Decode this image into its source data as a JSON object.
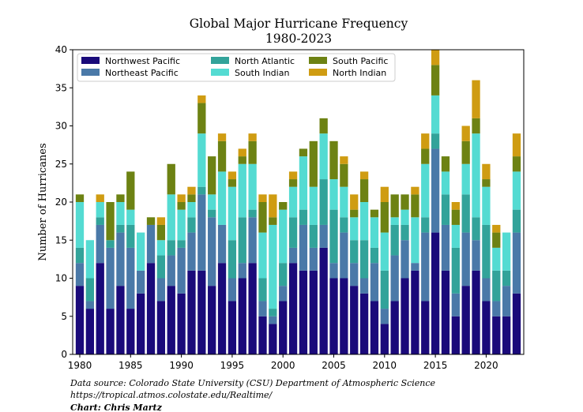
{
  "chart_data": {
    "type": "bar",
    "stacked": true,
    "title_line1": "Global Major Hurricane Frequency",
    "title_line2": "1980-2023",
    "xlabel": "",
    "ylabel": "Number of Hurricanes",
    "xlim": [
      1979.3,
      2023.7
    ],
    "ylim": [
      0,
      40
    ],
    "yticks": [
      0,
      5,
      10,
      15,
      20,
      25,
      30,
      35,
      40
    ],
    "xticks": [
      1980,
      1985,
      1990,
      1995,
      2000,
      2005,
      2010,
      2015,
      2020
    ],
    "grid": false,
    "legend_placement": "top-left",
    "categories": [
      1980,
      1981,
      1982,
      1983,
      1984,
      1985,
      1986,
      1987,
      1988,
      1989,
      1990,
      1991,
      1992,
      1993,
      1994,
      1995,
      1996,
      1997,
      1998,
      1999,
      2000,
      2001,
      2002,
      2003,
      2004,
      2005,
      2006,
      2007,
      2008,
      2009,
      2010,
      2011,
      2012,
      2013,
      2014,
      2015,
      2016,
      2017,
      2018,
      2019,
      2020,
      2021,
      2022,
      2023
    ],
    "series": [
      {
        "name": "Northwest Pacific",
        "color": "#1a0a7a",
        "values": [
          9,
          6,
          12,
          6,
          9,
          6,
          8,
          12,
          7,
          9,
          8,
          11,
          11,
          9,
          12,
          7,
          10,
          12,
          5,
          4,
          7,
          12,
          11,
          11,
          14,
          10,
          10,
          9,
          8,
          7,
          4,
          7,
          10,
          11,
          7,
          16,
          11,
          5,
          9,
          11,
          7,
          5,
          5,
          8
        ]
      },
      {
        "name": "Northeast Pacific",
        "color": "#4a79a8",
        "values": [
          3,
          1,
          5,
          8,
          7,
          8,
          3,
          5,
          3,
          4,
          6,
          5,
          10,
          9,
          5,
          3,
          2,
          6,
          2,
          1,
          2,
          2,
          6,
          3,
          3,
          2,
          6,
          3,
          2,
          5,
          2,
          6,
          5,
          1,
          9,
          11,
          6,
          3,
          7,
          4,
          3,
          2,
          4,
          8
        ]
      },
      {
        "name": "North Atlantic",
        "color": "#32a39a",
        "values": [
          2,
          3,
          1,
          1,
          1,
          3,
          0,
          0,
          3,
          2,
          1,
          2,
          1,
          1,
          0,
          5,
          6,
          1,
          3,
          1,
          3,
          4,
          2,
          3,
          6,
          7,
          2,
          3,
          5,
          2,
          5,
          4,
          2,
          0,
          2,
          2,
          4,
          6,
          5,
          3,
          7,
          4,
          2,
          3
        ]
      },
      {
        "name": "South Indian",
        "color": "#54dbd2",
        "values": [
          6,
          5,
          2,
          0,
          3,
          2,
          5,
          0,
          2,
          6,
          4,
          2,
          7,
          2,
          7,
          7,
          7,
          6,
          6,
          11,
          7,
          4,
          7,
          5,
          6,
          4,
          4,
          3,
          5,
          4,
          5,
          1,
          2,
          6,
          7,
          5,
          3,
          3,
          4,
          11,
          5,
          3,
          5,
          5
        ]
      },
      {
        "name": "South Pacific",
        "color": "#6d8213",
        "values": [
          1,
          0,
          0,
          5,
          1,
          5,
          0,
          1,
          2,
          4,
          1,
          1,
          4,
          5,
          4,
          1,
          1,
          3,
          4,
          1,
          1,
          1,
          1,
          6,
          2,
          5,
          3,
          1,
          3,
          1,
          4,
          3,
          2,
          3,
          2,
          4,
          2,
          2,
          3,
          2,
          1,
          2,
          0,
          2
        ]
      },
      {
        "name": "North Indian",
        "color": "#cf9c12",
        "values": [
          0,
          0,
          1,
          0,
          0,
          0,
          0,
          0,
          1,
          0,
          1,
          1,
          1,
          0,
          1,
          1,
          1,
          1,
          1,
          3,
          0,
          1,
          0,
          0,
          0,
          0,
          1,
          2,
          1,
          0,
          2,
          0,
          0,
          1,
          2,
          2,
          0,
          1,
          2,
          5,
          2,
          1,
          0,
          3
        ]
      }
    ]
  },
  "footer": {
    "line1": "Data source: Colorado State University (CSU) Department of Atmospheric Science",
    "line2": "https://tropical.atmos.colostate.edu/Realtime/",
    "line3": "Chart: Chris Martz"
  }
}
